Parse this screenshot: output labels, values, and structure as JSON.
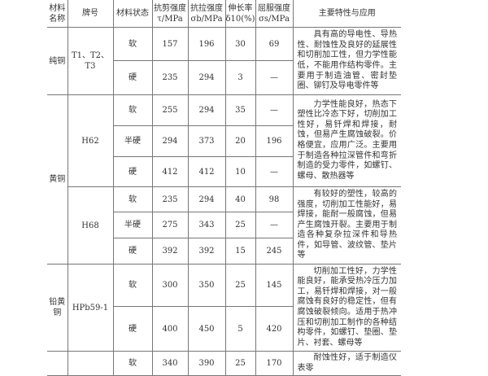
{
  "headers": {
    "name": "材料名称",
    "grade": "牌号",
    "state": "材料状态",
    "shear": "抗剪强度 τ/MPa",
    "tensile": "抗拉强度 σb/MPa",
    "elong": "伸长率 δ10(%)",
    "yield": "屈服强度 σs/MPa",
    "desc": "主要特性与应用"
  },
  "groups": [
    {
      "name": "纯铜",
      "grade": "T1、T2、T3",
      "rows": [
        [
          "软",
          "157",
          "196",
          "30",
          "69"
        ],
        [
          "硬",
          "235",
          "294",
          "3",
          "—"
        ]
      ],
      "desc": "具有高的导电性、导热性、耐蚀性及良好的延展性和切削加工性，但力学性能低，不能用作结构零件。主要用于制造油管、密封垫圈、铆钉及导电零件等"
    },
    {
      "name": "黄铜",
      "grade": "H62",
      "rows": [
        [
          "软",
          "255",
          "294",
          "35",
          "—"
        ],
        [
          "半硬",
          "294",
          "373",
          "20",
          "196"
        ],
        [
          "硬",
          "412",
          "412",
          "10",
          "—"
        ]
      ],
      "desc": "力学性能良好，热态下塑性比冷态下好，切削加工性好，易钎焊和焊接，耐蚀，但易产生腐蚀破裂。价格便宜，应用广泛。主要用于制造各种拉深管件和弯折制造的受力零件，如螺钉、螺母、散热器等"
    },
    {
      "name": "",
      "grade": "H68",
      "rows": [
        [
          "软",
          "235",
          "294",
          "40",
          "98"
        ],
        [
          "半硬",
          "275",
          "343",
          "25",
          "—"
        ],
        [
          "硬",
          "392",
          "392",
          "15",
          "245"
        ]
      ],
      "desc": "有较好的塑性，较高的强度，切削加工性能好，易焊接，能耐一般腐蚀，但易产生腐蚀开裂。主要用于制造各种复杂拉深件和导热件，如导管、波纹管、垫片等"
    },
    {
      "name": "铅黄铜",
      "grade": "HPb59-1",
      "rows": [
        [
          "软",
          "300",
          "350",
          "25",
          "145"
        ],
        [
          "硬",
          "400",
          "450",
          "5",
          "420"
        ]
      ],
      "desc": "切削加工性好，力学性能良好，能承受热冷压力加工，易钎焊和焊接，对一般腐蚀有良好的稳定性，但有腐蚀破裂倾向。适用于热冲压和切削加工制作的各种结构零件，如螺钉、垫圈、垫片、衬套、螺母等"
    },
    {
      "name": "",
      "grade": "",
      "rows": [
        [
          "软",
          "340",
          "390",
          "25",
          "170"
        ]
      ],
      "desc": "耐蚀性好，适于制造仪表零"
    }
  ]
}
